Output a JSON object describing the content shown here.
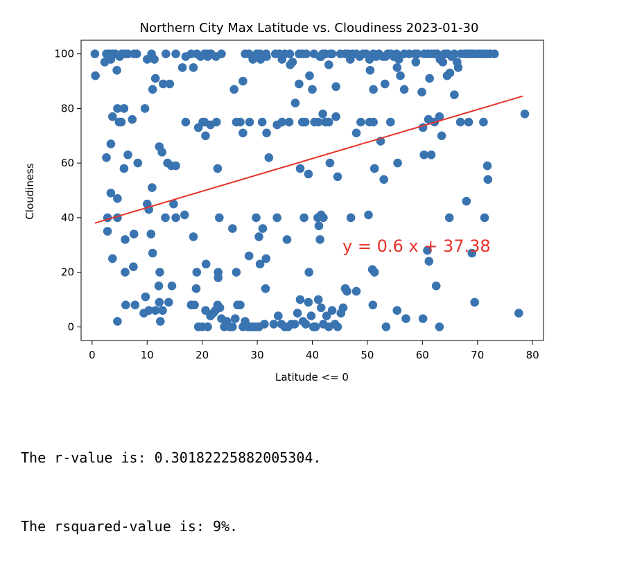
{
  "chart_data": {
    "type": "scatter",
    "title": "Northern City Max Latitude vs. Cloudiness 2023-01-30",
    "xlabel": "Latitude <= 0",
    "ylabel": "Cloudiness",
    "xlim": [
      -2,
      82
    ],
    "ylim": [
      -5,
      105
    ],
    "xticks": [
      0,
      10,
      20,
      30,
      40,
      50,
      60,
      70,
      80
    ],
    "yticks": [
      0,
      20,
      40,
      60,
      80,
      100
    ],
    "grid": false,
    "marker_color": "#3a74b0",
    "regression": {
      "slope": 0.6,
      "intercept": 37.38,
      "x_range": [
        0.5,
        78.2
      ],
      "y_range": [
        38.0,
        84.5
      ],
      "color": "#e8322a",
      "equation_label": "y = 0.6 x + 37.38"
    },
    "points": [
      [
        0.5,
        100
      ],
      [
        0.6,
        92
      ],
      [
        2.3,
        97
      ],
      [
        2.6,
        100
      ],
      [
        3.1,
        100
      ],
      [
        3.4,
        98
      ],
      [
        3.7,
        100
      ],
      [
        4.2,
        100
      ],
      [
        4.5,
        94
      ],
      [
        5.0,
        99
      ],
      [
        5.4,
        100
      ],
      [
        6.0,
        100
      ],
      [
        6.5,
        100
      ],
      [
        7.6,
        100
      ],
      [
        8.1,
        100
      ],
      [
        10.0,
        98
      ],
      [
        10.8,
        100
      ],
      [
        11.3,
        98
      ],
      [
        11.0,
        87
      ],
      [
        11.5,
        91
      ],
      [
        12.9,
        89
      ],
      [
        13.4,
        100
      ],
      [
        14.1,
        89
      ],
      [
        15.2,
        100
      ],
      [
        16.4,
        95
      ],
      [
        17.0,
        99
      ],
      [
        18.0,
        100
      ],
      [
        18.4,
        95
      ],
      [
        19.0,
        100
      ],
      [
        19.7,
        99
      ],
      [
        20.4,
        100
      ],
      [
        21.0,
        100
      ],
      [
        21.6,
        100
      ],
      [
        23.5,
        100
      ],
      [
        27.8,
        100
      ],
      [
        28.5,
        100
      ],
      [
        29.9,
        100
      ],
      [
        30.5,
        100
      ],
      [
        31.6,
        100
      ],
      [
        33.3,
        100
      ],
      [
        34.0,
        100
      ],
      [
        35.0,
        100
      ],
      [
        35.9,
        100
      ],
      [
        36.4,
        97
      ],
      [
        37.6,
        100
      ],
      [
        38.2,
        100
      ],
      [
        38.9,
        100
      ],
      [
        40.3,
        100
      ],
      [
        41.4,
        99
      ],
      [
        41.9,
        100
      ],
      [
        42.4,
        100
      ],
      [
        43.3,
        100
      ],
      [
        43.6,
        100
      ],
      [
        45.1,
        100
      ],
      [
        46.0,
        100
      ],
      [
        46.5,
        100
      ],
      [
        46.9,
        99
      ],
      [
        47.3,
        100
      ],
      [
        48.0,
        100
      ],
      [
        48.6,
        99
      ],
      [
        49.2,
        100
      ],
      [
        49.8,
        100
      ],
      [
        50.4,
        98
      ],
      [
        51.1,
        100
      ],
      [
        51.6,
        99
      ],
      [
        52.1,
        100
      ],
      [
        52.8,
        99
      ],
      [
        53.3,
        99
      ],
      [
        53.7,
        100
      ],
      [
        54.3,
        100
      ],
      [
        54.8,
        99
      ],
      [
        55.3,
        100
      ],
      [
        55.7,
        98
      ],
      [
        56.7,
        100
      ],
      [
        57.6,
        100
      ],
      [
        58.6,
        100
      ],
      [
        59.1,
        100
      ],
      [
        60.3,
        100
      ],
      [
        61.0,
        100
      ],
      [
        61.6,
        100
      ],
      [
        62.2,
        100
      ],
      [
        62.7,
        100
      ],
      [
        63.2,
        98
      ],
      [
        64.0,
        100
      ],
      [
        64.6,
        100
      ],
      [
        65.3,
        99
      ],
      [
        65.8,
        100
      ],
      [
        66.3,
        97
      ],
      [
        67.0,
        100
      ],
      [
        67.7,
        100
      ],
      [
        68.2,
        100
      ],
      [
        68.8,
        100
      ],
      [
        69.3,
        100
      ],
      [
        70.0,
        100
      ],
      [
        70.5,
        100
      ],
      [
        71.1,
        100
      ],
      [
        71.7,
        100
      ],
      [
        72.3,
        100
      ],
      [
        73.1,
        100
      ],
      [
        29.2,
        98
      ],
      [
        30.6,
        98
      ],
      [
        31.7,
        99
      ],
      [
        34.5,
        98
      ],
      [
        36.0,
        96
      ],
      [
        37.6,
        89
      ],
      [
        39.5,
        92
      ],
      [
        40.0,
        87
      ],
      [
        41.6,
        99
      ],
      [
        43.0,
        96
      ],
      [
        44.3,
        88
      ],
      [
        46.9,
        98
      ],
      [
        50.5,
        94
      ],
      [
        51.1,
        87
      ],
      [
        53.2,
        89
      ],
      [
        55.4,
        95
      ],
      [
        56.0,
        92
      ],
      [
        56.7,
        87
      ],
      [
        58.8,
        97
      ],
      [
        59.9,
        86
      ],
      [
        61.3,
        91
      ],
      [
        63.7,
        97
      ],
      [
        64.5,
        92
      ],
      [
        65.0,
        93
      ],
      [
        65.8,
        85
      ],
      [
        66.5,
        95
      ],
      [
        25.8,
        87
      ],
      [
        27.4,
        90
      ],
      [
        21.0,
        99
      ],
      [
        22.5,
        99
      ],
      [
        3.7,
        77
      ],
      [
        4.6,
        80
      ],
      [
        4.9,
        75
      ],
      [
        5.3,
        75
      ],
      [
        5.8,
        80
      ],
      [
        7.3,
        76
      ],
      [
        9.6,
        80
      ],
      [
        19.3,
        73
      ],
      [
        20.1,
        75
      ],
      [
        20.6,
        70
      ],
      [
        21.5,
        74
      ],
      [
        22.6,
        75
      ],
      [
        26.2,
        75
      ],
      [
        26.9,
        75
      ],
      [
        27.4,
        71
      ],
      [
        28.6,
        75
      ],
      [
        30.9,
        75
      ],
      [
        31.7,
        71
      ],
      [
        33.6,
        74
      ],
      [
        34.5,
        75
      ],
      [
        35.8,
        75
      ],
      [
        36.9,
        82
      ],
      [
        38.2,
        75
      ],
      [
        38.7,
        75
      ],
      [
        40.4,
        75
      ],
      [
        41.1,
        75
      ],
      [
        41.9,
        78
      ],
      [
        42.4,
        75
      ],
      [
        43.0,
        75
      ],
      [
        44.3,
        77
      ],
      [
        48.0,
        71
      ],
      [
        48.8,
        75
      ],
      [
        50.4,
        75
      ],
      [
        51.1,
        75
      ],
      [
        52.4,
        68
      ],
      [
        54.2,
        75
      ],
      [
        60.1,
        73
      ],
      [
        61.1,
        76
      ],
      [
        61.6,
        63
      ],
      [
        62.2,
        75
      ],
      [
        63.1,
        77
      ],
      [
        63.5,
        70
      ],
      [
        66.9,
        75
      ],
      [
        68.4,
        75
      ],
      [
        71.1,
        75
      ],
      [
        17.0,
        75
      ],
      [
        20.4,
        75
      ],
      [
        2.6,
        62
      ],
      [
        3.4,
        67
      ],
      [
        5.8,
        58
      ],
      [
        6.5,
        63
      ],
      [
        8.3,
        60
      ],
      [
        12.2,
        66
      ],
      [
        12.7,
        64
      ],
      [
        13.7,
        60
      ],
      [
        14.4,
        59
      ],
      [
        15.2,
        59
      ],
      [
        22.8,
        58
      ],
      [
        32.1,
        62
      ],
      [
        37.8,
        58
      ],
      [
        39.3,
        56
      ],
      [
        43.2,
        60
      ],
      [
        44.6,
        55
      ],
      [
        51.3,
        58
      ],
      [
        53.0,
        54
      ],
      [
        55.5,
        60
      ],
      [
        60.3,
        63
      ],
      [
        71.8,
        59
      ],
      [
        71.9,
        54
      ],
      [
        3.4,
        49
      ],
      [
        4.6,
        47
      ],
      [
        10.0,
        45
      ],
      [
        10.3,
        43
      ],
      [
        10.9,
        51
      ],
      [
        14.8,
        45
      ],
      [
        16.8,
        41
      ],
      [
        2.8,
        40
      ],
      [
        4.6,
        40
      ],
      [
        13.3,
        40
      ],
      [
        15.2,
        40
      ],
      [
        23.1,
        40
      ],
      [
        29.8,
        40
      ],
      [
        33.6,
        40
      ],
      [
        38.5,
        40
      ],
      [
        41.0,
        40
      ],
      [
        41.6,
        41
      ],
      [
        42.0,
        40
      ],
      [
        41.2,
        37
      ],
      [
        47.0,
        40
      ],
      [
        50.2,
        41
      ],
      [
        64.9,
        40
      ],
      [
        68.0,
        46
      ],
      [
        71.3,
        40
      ],
      [
        2.8,
        35
      ],
      [
        6.0,
        32
      ],
      [
        7.6,
        34
      ],
      [
        10.7,
        34
      ],
      [
        18.4,
        33
      ],
      [
        25.5,
        36
      ],
      [
        30.3,
        33
      ],
      [
        31.0,
        36
      ],
      [
        35.4,
        32
      ],
      [
        41.4,
        32
      ],
      [
        3.7,
        25
      ],
      [
        6.0,
        20
      ],
      [
        7.5,
        22
      ],
      [
        11.0,
        27
      ],
      [
        12.3,
        20
      ],
      [
        19.0,
        20
      ],
      [
        20.7,
        23
      ],
      [
        22.9,
        18
      ],
      [
        22.9,
        20
      ],
      [
        26.2,
        20
      ],
      [
        28.5,
        26
      ],
      [
        30.5,
        23
      ],
      [
        31.6,
        25
      ],
      [
        39.4,
        20
      ],
      [
        46.0,
        14
      ],
      [
        46.3,
        13
      ],
      [
        48.0,
        13
      ],
      [
        50.9,
        21
      ],
      [
        51.3,
        20
      ],
      [
        60.9,
        28
      ],
      [
        61.2,
        24
      ],
      [
        69.0,
        27
      ],
      [
        31.5,
        14
      ],
      [
        12.1,
        15
      ],
      [
        14.5,
        15
      ],
      [
        18.9,
        14
      ],
      [
        62.5,
        15
      ],
      [
        4.6,
        2
      ],
      [
        6.1,
        8
      ],
      [
        7.8,
        8
      ],
      [
        9.4,
        5
      ],
      [
        9.7,
        11
      ],
      [
        10.3,
        6
      ],
      [
        11.5,
        6
      ],
      [
        12.2,
        9
      ],
      [
        12.4,
        2
      ],
      [
        12.8,
        6
      ],
      [
        13.9,
        9
      ],
      [
        18.0,
        8
      ],
      [
        18.6,
        8
      ],
      [
        19.3,
        0
      ],
      [
        20.0,
        0
      ],
      [
        20.6,
        6
      ],
      [
        21.0,
        0
      ],
      [
        21.5,
        4
      ],
      [
        22.0,
        5
      ],
      [
        22.4,
        6
      ],
      [
        22.8,
        8
      ],
      [
        23.2,
        7
      ],
      [
        23.5,
        3
      ],
      [
        24.0,
        0
      ],
      [
        24.5,
        2
      ],
      [
        25.0,
        0
      ],
      [
        25.5,
        0
      ],
      [
        26.0,
        3
      ],
      [
        26.4,
        8
      ],
      [
        26.9,
        8
      ],
      [
        27.4,
        0
      ],
      [
        27.8,
        2
      ],
      [
        28.3,
        0
      ],
      [
        28.8,
        0
      ],
      [
        29.3,
        0
      ],
      [
        29.8,
        0
      ],
      [
        30.3,
        0
      ],
      [
        31.3,
        1
      ],
      [
        33.0,
        1
      ],
      [
        33.8,
        4
      ],
      [
        34.4,
        1
      ],
      [
        35.0,
        0
      ],
      [
        35.6,
        0
      ],
      [
        36.2,
        1
      ],
      [
        36.8,
        1
      ],
      [
        37.3,
        5
      ],
      [
        37.8,
        10
      ],
      [
        38.3,
        2
      ],
      [
        38.8,
        1
      ],
      [
        39.3,
        9
      ],
      [
        39.8,
        4
      ],
      [
        40.2,
        0
      ],
      [
        40.6,
        0
      ],
      [
        41.1,
        10
      ],
      [
        41.6,
        7
      ],
      [
        42.0,
        1
      ],
      [
        42.6,
        4
      ],
      [
        43.0,
        0
      ],
      [
        43.6,
        6
      ],
      [
        44.1,
        1
      ],
      [
        44.6,
        0
      ],
      [
        45.2,
        5
      ],
      [
        45.6,
        7
      ],
      [
        46.0,
        14
      ],
      [
        51.0,
        8
      ],
      [
        53.4,
        0
      ],
      [
        55.4,
        6
      ],
      [
        57.0,
        3
      ],
      [
        60.1,
        3
      ],
      [
        63.1,
        0
      ],
      [
        69.5,
        9
      ],
      [
        77.5,
        5
      ],
      [
        78.6,
        78
      ]
    ]
  },
  "output": {
    "line1": "The r-value is: 0.30182225882005304.",
    "line2": "The rsquared-value is: 9%."
  }
}
